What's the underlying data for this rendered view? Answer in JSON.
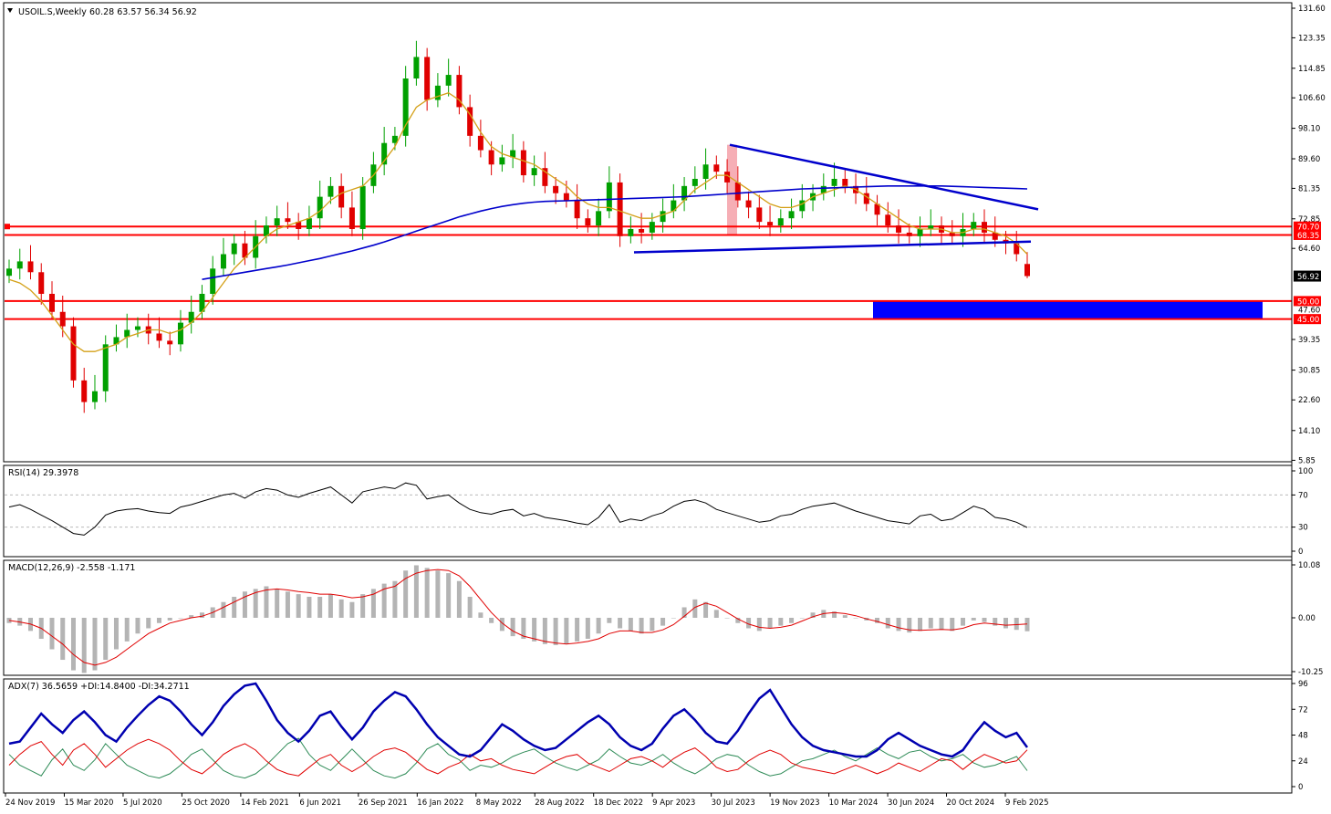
{
  "colors": {
    "background": "#ffffff",
    "frame": "#000000",
    "bull_candle": "#00a000",
    "bear_candle": "#e00000",
    "ma_fast": "#d4a017",
    "ma_slow": "#0000cc",
    "trendline": "#0000cc",
    "resistance_line": "#ff0000",
    "target_zone": "#0000ff",
    "highlight": "#f4a0a8",
    "price_label_bg": "#ff0000",
    "current_price_bg": "#000000",
    "macd_hist": "#b4b4b4",
    "macd_signal": "#e00000",
    "adx_line": "#0000b0",
    "plus_di": "#2e8b57",
    "minus_di": "#e00000"
  },
  "header": {
    "symbol": "USOIL.S,Weekly",
    "ohlc": "60.28 63.57 56.34 56.92"
  },
  "chart_data": [
    {
      "type": "candlestick",
      "panel": "price",
      "symbol": "USOIL.S",
      "timeframe": "Weekly",
      "open": 60.28,
      "high": 63.57,
      "low": 56.34,
      "close": 56.92,
      "ylim": [
        5.85,
        131.6
      ],
      "y_ticks": [
        "131.60",
        "123.35",
        "114.85",
        "106.60",
        "98.10",
        "89.60",
        "81.35",
        "72.85",
        "64.60",
        "39.35",
        "30.85",
        "22.60",
        "14.10",
        "5.85"
      ],
      "x_ticks": [
        "24 Nov 2019",
        "15 Mar 2020",
        "5 Jul 2020",
        "25 Oct 2020",
        "14 Feb 2021",
        "6 Jun 2021",
        "26 Sep 2021",
        "16 Jan 2022",
        "8 May 2022",
        "28 Aug 2022",
        "18 Dec 2022",
        "9 Apr 2023",
        "30 Jul 2023",
        "19 Nov 2023",
        "10 Mar 2024",
        "30 Jun 2024",
        "20 Oct 2024",
        "9 Feb 2025"
      ],
      "closes_approx": [
        59,
        61,
        58,
        52,
        47,
        43,
        28,
        22,
        25,
        38,
        40,
        42,
        43,
        41,
        39,
        38,
        44,
        47,
        52,
        59,
        63,
        66,
        62,
        68,
        71,
        73,
        72,
        70,
        73,
        79,
        82,
        76,
        70,
        82,
        88,
        94,
        96,
        112,
        118,
        106,
        110,
        113,
        104,
        96,
        92,
        88,
        90,
        92,
        85,
        87,
        82,
        80,
        78,
        73,
        71,
        75,
        83,
        68,
        70,
        69,
        72,
        75,
        78,
        82,
        84,
        88,
        86,
        83,
        78,
        76,
        72,
        71,
        73,
        75,
        78,
        80,
        82,
        84,
        82,
        80,
        77,
        74,
        71,
        69,
        68,
        70,
        71,
        69,
        68,
        70,
        72,
        69,
        67,
        66,
        63,
        57
      ],
      "series": [
        {
          "name": "",
          "kind": "ma",
          "values": [
            56,
            55,
            53,
            50,
            46,
            42,
            38,
            36,
            36,
            37,
            38,
            40,
            41,
            42,
            42,
            41,
            42,
            44,
            47,
            51,
            55,
            59,
            62,
            65,
            68,
            70,
            71,
            72,
            73,
            75,
            78,
            80,
            81,
            82,
            85,
            89,
            93,
            99,
            104,
            106,
            107,
            108,
            106,
            102,
            97,
            93,
            91,
            90,
            89,
            88,
            86,
            84,
            82,
            79,
            77,
            76,
            76,
            75,
            74,
            73,
            73,
            74,
            75,
            78,
            81,
            83,
            85,
            85,
            83,
            81,
            79,
            77,
            76,
            76,
            77,
            79,
            80,
            81,
            82,
            81,
            79,
            77,
            75,
            73,
            71,
            70,
            70,
            70,
            69,
            69,
            70,
            70,
            69,
            68,
            66,
            63
          ]
        },
        {
          "name": "",
          "kind": "ma",
          "values": [
            null,
            null,
            null,
            null,
            null,
            null,
            null,
            null,
            null,
            null,
            null,
            null,
            null,
            null,
            null,
            null,
            null,
            null,
            56.0,
            56.5,
            57.0,
            57.5,
            58.0,
            58.5,
            59.0,
            59.5,
            60.0,
            60.6,
            61.2,
            61.8,
            62.5,
            63.2,
            63.9,
            64.7,
            65.5,
            66.4,
            67.4,
            68.4,
            69.4,
            70.4,
            71.4,
            72.4,
            73.4,
            74.2,
            75.0,
            75.7,
            76.3,
            76.8,
            77.2,
            77.5,
            77.7,
            77.8,
            77.9,
            78.0,
            78.1,
            78.2,
            78.3,
            78.4,
            78.5,
            78.6,
            78.7,
            78.8,
            78.9,
            79.0,
            79.2,
            79.4,
            79.6,
            79.8,
            80.0,
            80.2,
            80.4,
            80.6,
            80.8,
            81.0,
            81.2,
            81.3,
            81.4,
            81.5,
            81.6,
            81.7,
            81.8,
            81.9,
            82.0,
            82.0,
            82.0,
            82.0,
            82.0,
            82.0,
            81.9,
            81.8,
            81.7,
            81.6,
            81.5,
            81.4,
            81.3,
            81.2
          ]
        }
      ],
      "levels": [
        {
          "label": "70.70",
          "value": 70.7
        },
        {
          "label": "68.35",
          "value": 68.35
        },
        {
          "label": "50.00",
          "value": 50.0
        },
        {
          "label": "47.60",
          "value": 47.6
        },
        {
          "label": "45.00",
          "value": 45.0
        }
      ],
      "current_price_label": "56.92",
      "target_zone": {
        "from": 45.0,
        "to": 50.0,
        "x_from": "Jan 2024",
        "x_to": "end"
      },
      "trendlines": [
        {
          "from": [
            "30 Jul 2023",
            93.5
          ],
          "to": [
            "Mar 2025",
            75.5
          ]
        },
        {
          "from": [
            "Jan 2023",
            63.5
          ],
          "to": [
            "Mar 2025",
            66.5
          ]
        }
      ]
    },
    {
      "type": "line",
      "panel": "rsi",
      "title": "RSI(14) 29.3978",
      "ylim": [
        0,
        100
      ],
      "y_ticks": [
        "100",
        "70",
        "30",
        "0"
      ],
      "guides": [
        70,
        30
      ],
      "series": [
        {
          "name": "",
          "values": [
            55,
            58,
            52,
            45,
            38,
            30,
            22,
            20,
            30,
            45,
            50,
            52,
            53,
            50,
            48,
            47,
            55,
            58,
            62,
            66,
            70,
            72,
            66,
            74,
            78,
            76,
            70,
            67,
            72,
            76,
            80,
            70,
            60,
            74,
            77,
            80,
            78,
            85,
            82,
            65,
            68,
            70,
            60,
            52,
            48,
            46,
            50,
            52,
            44,
            47,
            42,
            40,
            38,
            35,
            33,
            42,
            58,
            36,
            40,
            38,
            44,
            48,
            56,
            62,
            64,
            60,
            52,
            48,
            44,
            40,
            36,
            38,
            44,
            46,
            52,
            56,
            58,
            60,
            55,
            50,
            46,
            42,
            38,
            36,
            34,
            44,
            46,
            38,
            40,
            48,
            56,
            52,
            42,
            40,
            36,
            29.4
          ]
        }
      ]
    },
    {
      "type": "bar+line",
      "panel": "macd",
      "title": "MACD(12,26,9) -2.558 -1.171",
      "ylim": [
        -11.5,
        11.5
      ],
      "y_ticks": [
        "10.08",
        "0.00",
        "-10.25"
      ],
      "histogram": [
        -1,
        -1.5,
        -2.5,
        -4,
        -6,
        -8,
        -10,
        -10.5,
        -10,
        -8,
        -6,
        -4.5,
        -3,
        -2,
        -1,
        -0.5,
        0,
        0.5,
        1,
        2,
        3,
        4,
        5,
        5.5,
        6,
        5.5,
        5,
        4.5,
        4,
        4,
        4.5,
        3.5,
        3,
        4.5,
        5.5,
        6.5,
        7,
        9,
        10,
        9.5,
        9,
        8.5,
        7,
        4,
        1,
        -1,
        -2.5,
        -3.5,
        -4,
        -4.5,
        -5,
        -5.2,
        -5,
        -4.5,
        -4,
        -3,
        -1,
        -2,
        -2.5,
        -3,
        -2.5,
        -1.5,
        0,
        2,
        3.5,
        3,
        1.5,
        0,
        -1,
        -2,
        -2.5,
        -2,
        -1.5,
        -1,
        0,
        1,
        1.5,
        1.2,
        0.5,
        0,
        -0.5,
        -1,
        -2,
        -2.5,
        -2.8,
        -2.5,
        -2,
        -2.2,
        -2.5,
        -1.5,
        -0.5,
        -0.8,
        -1.5,
        -2,
        -2.3,
        -2.56
      ],
      "series": [
        {
          "name": "",
          "values": [
            -0.5,
            -0.8,
            -1.2,
            -2,
            -3.5,
            -5,
            -7,
            -8.5,
            -9,
            -8.5,
            -7.5,
            -6,
            -4.5,
            -3,
            -2,
            -1,
            -0.5,
            0,
            0.3,
            1,
            2,
            3,
            4,
            4.8,
            5.3,
            5.5,
            5.3,
            5,
            4.8,
            4.5,
            4.5,
            4.2,
            3.8,
            4,
            4.5,
            5.5,
            6,
            7.5,
            8.5,
            9,
            9.2,
            9,
            8,
            6,
            3.5,
            1,
            -1,
            -2.5,
            -3.5,
            -4,
            -4.5,
            -4.8,
            -5,
            -4.8,
            -4.5,
            -4,
            -3,
            -2.5,
            -2.5,
            -2.8,
            -2.8,
            -2.3,
            -1.3,
            0.3,
            2,
            2.8,
            2.2,
            1,
            -0.2,
            -1.2,
            -1.8,
            -2,
            -1.8,
            -1.4,
            -0.6,
            0.2,
            0.8,
            1,
            0.8,
            0.4,
            -0.2,
            -0.7,
            -1.3,
            -1.9,
            -2.3,
            -2.4,
            -2.3,
            -2.2,
            -2.3,
            -2,
            -1.3,
            -1,
            -1.2,
            -1.4,
            -1.3,
            -1.17
          ]
        }
      ]
    },
    {
      "type": "line",
      "panel": "adx",
      "title": "ADX(7) 36.5659 +DI:14.8400 -DI:34.2711",
      "ylim": [
        0,
        100
      ],
      "y_ticks": [
        "96",
        "72",
        "48",
        "24",
        "0"
      ],
      "series": [
        {
          "name": "",
          "values": [
            40,
            42,
            55,
            68,
            58,
            50,
            62,
            70,
            60,
            48,
            42,
            55,
            66,
            76,
            84,
            80,
            70,
            58,
            48,
            60,
            75,
            86,
            94,
            96,
            80,
            62,
            50,
            42,
            52,
            66,
            70,
            56,
            44,
            55,
            70,
            80,
            88,
            84,
            72,
            58,
            46,
            38,
            30,
            28,
            34,
            46,
            58,
            52,
            44,
            38,
            34,
            36,
            44,
            52,
            60,
            66,
            58,
            46,
            38,
            34,
            40,
            54,
            66,
            72,
            62,
            50,
            42,
            40,
            52,
            68,
            82,
            90,
            74,
            58,
            46,
            38,
            34,
            32,
            30,
            28,
            28,
            34,
            44,
            50,
            44,
            38,
            34,
            30,
            28,
            34,
            48,
            60,
            52,
            46,
            50,
            36.57
          ]
        },
        {
          "name": "",
          "values": [
            30,
            20,
            15,
            10,
            25,
            35,
            20,
            15,
            25,
            40,
            30,
            20,
            15,
            10,
            8,
            12,
            20,
            30,
            35,
            25,
            15,
            10,
            8,
            12,
            20,
            30,
            40,
            45,
            30,
            20,
            15,
            25,
            35,
            25,
            15,
            10,
            8,
            12,
            22,
            35,
            40,
            30,
            25,
            15,
            20,
            18,
            22,
            28,
            32,
            35,
            28,
            22,
            18,
            15,
            20,
            25,
            35,
            28,
            22,
            20,
            24,
            30,
            22,
            16,
            12,
            18,
            26,
            30,
            28,
            20,
            14,
            10,
            12,
            18,
            24,
            26,
            30,
            34,
            28,
            24,
            30,
            36,
            30,
            26,
            32,
            34,
            28,
            24,
            26,
            30,
            22,
            18,
            20,
            24,
            28,
            14.84
          ]
        },
        {
          "name": "",
          "values": [
            20,
            30,
            38,
            42,
            30,
            20,
            34,
            40,
            30,
            18,
            26,
            34,
            40,
            44,
            40,
            34,
            24,
            16,
            12,
            20,
            30,
            36,
            40,
            34,
            24,
            16,
            12,
            10,
            18,
            26,
            30,
            20,
            14,
            20,
            28,
            34,
            36,
            32,
            24,
            16,
            12,
            18,
            22,
            30,
            24,
            26,
            20,
            16,
            14,
            12,
            18,
            24,
            28,
            30,
            22,
            18,
            14,
            20,
            26,
            28,
            24,
            18,
            26,
            32,
            36,
            28,
            18,
            14,
            16,
            24,
            30,
            34,
            30,
            22,
            18,
            16,
            14,
            12,
            16,
            20,
            16,
            12,
            16,
            22,
            18,
            14,
            20,
            26,
            24,
            16,
            24,
            30,
            26,
            22,
            24,
            34.27
          ]
        }
      ]
    }
  ]
}
